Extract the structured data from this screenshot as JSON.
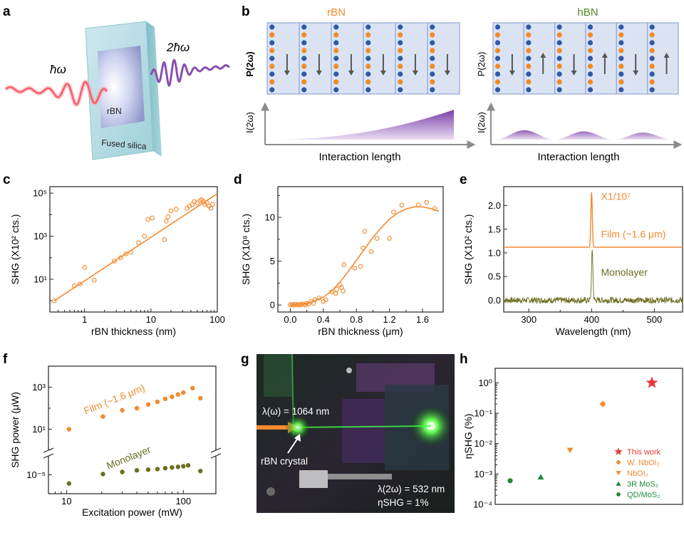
{
  "colors": {
    "orange": "#f28a2e",
    "olive": "#6b6d1f",
    "purple": "#8a4fb0",
    "red": "#e63b3b",
    "green": "#1f8a3a",
    "box_fill": "#dbe3f3",
    "box_edge": "#8fa7d6",
    "atom_blue": "#3057a8",
    "atom_orange": "#f08a24"
  },
  "panel_letters": [
    "a",
    "b",
    "c",
    "d",
    "e",
    "f",
    "g",
    "h"
  ],
  "panel_a": {
    "in_label": "ħω",
    "out_label": "2ħω",
    "crystal_label": "rBN",
    "substrate_label": "Fused silica"
  },
  "panel_b": {
    "left_title": "rBN",
    "right_title": "hBN",
    "polarization_label": "P(2ω)",
    "intensity_label": "I(2ω)",
    "x_label": "Interaction length",
    "left_arrows": [
      "down",
      "down",
      "down",
      "down",
      "down",
      "down"
    ],
    "right_arrows": [
      "down",
      "up",
      "down",
      "up",
      "down",
      "up"
    ]
  },
  "panel_g": {
    "in_label": "λ(ω) = 1064 nm",
    "crystal_label": "rBN crystal",
    "out_label": "λ(2ω) = 532 nm",
    "eff_label": "ηSHG = 1%"
  },
  "chart_data": [
    {
      "panel": "c",
      "type": "scatter",
      "xlabel": "rBN thickness (nm)",
      "ylabel": "SHG (X10² cts.)",
      "xscale": "log",
      "yscale": "log",
      "xlim": [
        0.3,
        100
      ],
      "ylim": [
        0.3,
        200000
      ],
      "x_ticks": [
        "1",
        "10",
        "100"
      ],
      "y_ticks": [
        "10¹",
        "10³",
        "10⁵"
      ],
      "points": [
        [
          0.35,
          1
        ],
        [
          0.7,
          5
        ],
        [
          0.85,
          6
        ],
        [
          1.0,
          35
        ],
        [
          1.4,
          9
        ],
        [
          2.8,
          70
        ],
        [
          3.5,
          100
        ],
        [
          4.2,
          150
        ],
        [
          5.0,
          180
        ],
        [
          6.5,
          500
        ],
        [
          8.0,
          1000
        ],
        [
          9.0,
          6000
        ],
        [
          10.5,
          7000
        ],
        [
          16,
          700
        ],
        [
          17,
          5000
        ],
        [
          18,
          8000
        ],
        [
          20,
          15000
        ],
        [
          24,
          18000
        ],
        [
          35,
          20000
        ],
        [
          38,
          25000
        ],
        [
          42,
          30000
        ],
        [
          45,
          40000
        ],
        [
          50,
          35000
        ],
        [
          55,
          45000
        ],
        [
          58,
          50000
        ],
        [
          62,
          40000
        ],
        [
          65,
          30000
        ],
        [
          70,
          35000
        ],
        [
          75,
          25000
        ],
        [
          80,
          20000
        ],
        [
          85,
          30000
        ]
      ],
      "fit": [
        [
          0.35,
          1
        ],
        [
          100,
          95000
        ]
      ]
    },
    {
      "panel": "d",
      "type": "scatter",
      "xlabel": "rBN thickness (μm)",
      "ylabel": "SHG (X10⁸ cts.)",
      "xlim": [
        -0.15,
        1.85
      ],
      "ylim": [
        -0.8,
        13.5
      ],
      "x_ticks": [
        "0.0",
        "0.4",
        "0.8",
        "1.2",
        "1.6"
      ],
      "y_ticks": [
        "0",
        "5",
        "10"
      ],
      "points": [
        [
          0.0,
          0
        ],
        [
          0.02,
          0.05
        ],
        [
          0.04,
          0
        ],
        [
          0.06,
          0.1
        ],
        [
          0.08,
          0
        ],
        [
          0.1,
          0.05
        ],
        [
          0.12,
          0
        ],
        [
          0.14,
          0.1
        ],
        [
          0.16,
          0.1
        ],
        [
          0.18,
          0
        ],
        [
          0.2,
          0.2
        ],
        [
          0.22,
          0.1
        ],
        [
          0.25,
          0.4
        ],
        [
          0.28,
          0.2
        ],
        [
          0.3,
          0.6
        ],
        [
          0.35,
          0.8
        ],
        [
          0.4,
          0.4
        ],
        [
          0.43,
          0.6
        ],
        [
          0.5,
          1.5
        ],
        [
          0.55,
          1.3
        ],
        [
          0.56,
          1.8
        ],
        [
          0.6,
          2.3
        ],
        [
          0.62,
          2.0
        ],
        [
          0.64,
          1.6
        ],
        [
          0.65,
          4.6
        ],
        [
          0.78,
          4.2
        ],
        [
          0.85,
          4.4
        ],
        [
          0.88,
          6.5
        ],
        [
          0.9,
          8.4
        ],
        [
          0.98,
          6.1
        ],
        [
          1.05,
          7.6
        ],
        [
          1.2,
          7.6
        ],
        [
          1.25,
          10.6
        ],
        [
          1.35,
          11.4
        ],
        [
          1.55,
          11.4
        ],
        [
          1.65,
          11.7
        ],
        [
          1.75,
          11.0
        ]
      ],
      "fit": [
        [
          0.0,
          0
        ],
        [
          0.2,
          0.15
        ],
        [
          0.4,
          0.9
        ],
        [
          0.5,
          1.6
        ],
        [
          0.6,
          2.6
        ],
        [
          0.7,
          3.8
        ],
        [
          0.8,
          5.1
        ],
        [
          0.9,
          6.4
        ],
        [
          1.0,
          7.7
        ],
        [
          1.1,
          8.8
        ],
        [
          1.2,
          9.8
        ],
        [
          1.3,
          10.5
        ],
        [
          1.4,
          10.95
        ],
        [
          1.5,
          11.2
        ],
        [
          1.6,
          11.2
        ],
        [
          1.7,
          11.0
        ],
        [
          1.8,
          10.7
        ]
      ]
    },
    {
      "panel": "e",
      "type": "line",
      "xlabel": "Wavelength (nm)",
      "ylabel": "SHG (X10² cts.)",
      "xlim": [
        260,
        545
      ],
      "ylim": [
        -0.25,
        2.4
      ],
      "x_ticks": [
        "300",
        "400",
        "500"
      ],
      "y_ticks": [
        "0.0",
        "0.5",
        "1.0",
        "1.5",
        "2.0"
      ],
      "series": [
        {
          "name": "Film (~1.6 μm)",
          "scale_note": "X1/10⁷",
          "baseline": 1.12,
          "peak_x": 400,
          "peak_y": 2.28
        },
        {
          "name": "Monolayer",
          "baseline": 0.0,
          "peak_x": 401,
          "peak_y": 1.05
        }
      ]
    },
    {
      "panel": "f",
      "type": "scatter",
      "xlabel": "Excitation power (mW)",
      "ylabel": "SHG power (μW)",
      "xscale": "log",
      "yscale": "log (broken axis)",
      "xlim": [
        7,
        190
      ],
      "x_ticks": [
        "10",
        "100"
      ],
      "y_ticks": [
        "10¹",
        "10³",
        "10⁻⁵"
      ],
      "series": [
        {
          "name": "Film (~1.6 μm)",
          "x": [
            10.5,
            20.5,
            30,
            40,
            50,
            60,
            70,
            80,
            90,
            100,
            120,
            140
          ],
          "y": [
            10,
            40,
            80,
            100,
            150,
            200,
            280,
            350,
            450,
            550,
            900,
            300
          ]
        },
        {
          "name": "Monolayer",
          "x": [
            10.5,
            20.5,
            30,
            40,
            50,
            60,
            70,
            80,
            90,
            100,
            110,
            140
          ],
          "y": [
            1.2e-06,
            1.2e-05,
            2e-05,
            3e-05,
            3.5e-05,
            4e-05,
            5e-05,
            6e-05,
            7e-05,
            8e-05,
            0.0001,
            2.5e-05
          ]
        }
      ]
    },
    {
      "panel": "h",
      "type": "scatter",
      "ylabel": "ηSHG (%)",
      "yscale": "log",
      "ylim": [
        0.0001,
        3
      ],
      "y_ticks": [
        "10⁻⁴",
        "10⁻³",
        "10⁻²",
        "10⁻¹",
        "10⁰"
      ],
      "series": [
        {
          "name": "This work",
          "marker": "star",
          "value": 1
        },
        {
          "name": "W. NbOI₂",
          "marker": "diamond",
          "value": 0.2
        },
        {
          "name": "NbOI₂",
          "marker": "triangle-down",
          "value": 0.006
        },
        {
          "name": "3R MoS₂",
          "marker": "triangle-up",
          "value": 0.0008
        },
        {
          "name": "QD/MoS₂",
          "marker": "circle",
          "value": 0.0006
        }
      ],
      "legend_placement": "bottom-right"
    }
  ]
}
